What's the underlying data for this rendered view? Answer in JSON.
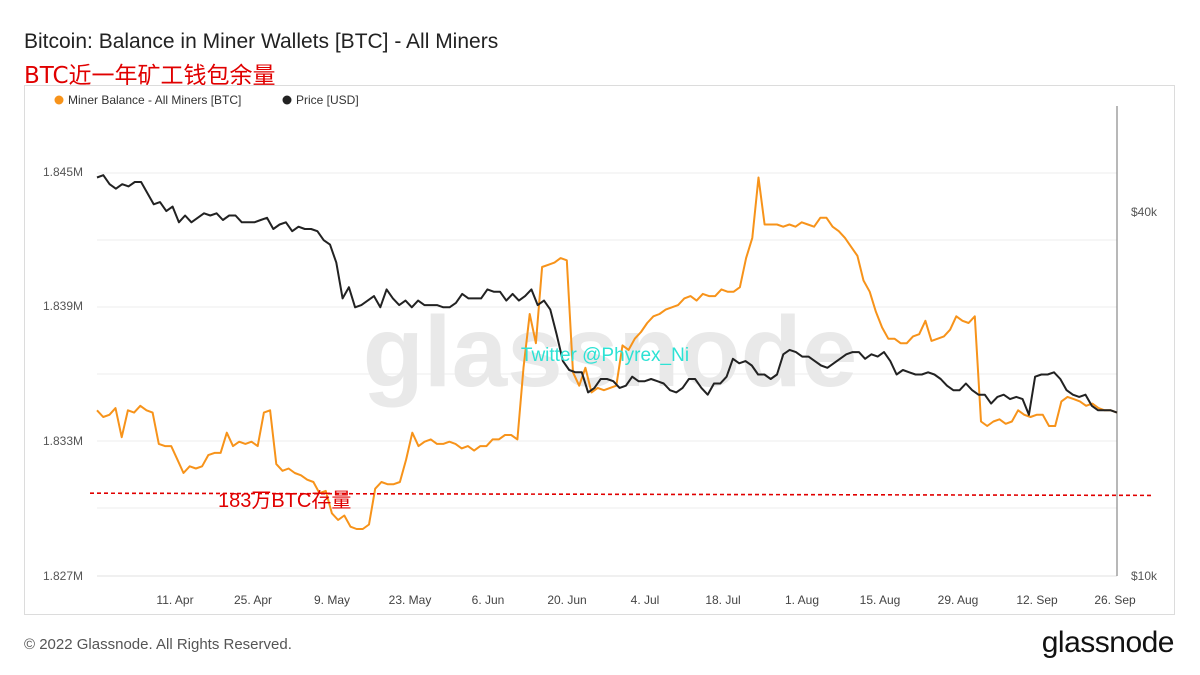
{
  "header": {
    "title": "Bitcoin: Balance in Miner Wallets [BTC] - All Miners",
    "subtitle": "BTC近一年矿工钱包余量"
  },
  "footer": {
    "copyright": "© 2022 Glassnode. All Rights Reserved.",
    "logo": "glassnode"
  },
  "colors": {
    "balance": "#f7931a",
    "price": "#222222",
    "reference": "#e00000",
    "watermark_handle": "#2de2d4"
  },
  "chart_data": {
    "type": "line",
    "legend_position": "top-left",
    "grid": true,
    "categories_labels": [
      "11. Apr",
      "25. Apr",
      "9. May",
      "23. May",
      "6. Jun",
      "20. Jun",
      "4. Jul",
      "18. Jul",
      "1. Aug",
      "15. Aug",
      "29. Aug",
      "12. Sep",
      "26. Sep"
    ],
    "y_left": {
      "ticks": [
        "1.827M",
        "1.833M",
        "1.839M",
        "1.845M"
      ],
      "min": 1.827,
      "max": 1.8478,
      "unit": "M BTC"
    },
    "y_right": {
      "ticks": [
        "$10k",
        "$40k"
      ],
      "scale": "log"
    },
    "series": [
      {
        "name": "Miner Balance - All Miners [BTC]",
        "axis": "left",
        "values": [
          1.8344,
          1.8341,
          1.8342,
          1.8345,
          1.8332,
          1.8344,
          1.8343,
          1.8346,
          1.8344,
          1.8343,
          1.8329,
          1.8328,
          1.8328,
          1.8322,
          1.8316,
          1.8319,
          1.8318,
          1.8319,
          1.8324,
          1.8325,
          1.8325,
          1.8334,
          1.8328,
          1.833,
          1.8329,
          1.833,
          1.8328,
          1.8343,
          1.8344,
          1.832,
          1.8317,
          1.8318,
          1.8316,
          1.8315,
          1.8313,
          1.8312,
          1.8307,
          1.8308,
          1.8298,
          1.8295,
          1.8297,
          1.8292,
          1.8291,
          1.8291,
          1.8293,
          1.8309,
          1.8312,
          1.8311,
          1.8311,
          1.8312,
          1.8322,
          1.8334,
          1.8328,
          1.833,
          1.8331,
          1.8329,
          1.8329,
          1.833,
          1.8329,
          1.8327,
          1.8328,
          1.8326,
          1.8328,
          1.8328,
          1.8331,
          1.8331,
          1.8333,
          1.8333,
          1.8331,
          1.8363,
          1.8387,
          1.8374,
          1.8408,
          1.8409,
          1.841,
          1.8412,
          1.8411,
          1.8361,
          1.8355,
          1.8363,
          1.8352,
          1.8354,
          1.8353,
          1.8354,
          1.8355,
          1.8373,
          1.8371,
          1.8376,
          1.8379,
          1.8383,
          1.8386,
          1.8387,
          1.8389,
          1.839,
          1.8391,
          1.8394,
          1.8395,
          1.8393,
          1.8396,
          1.8395,
          1.8395,
          1.8398,
          1.8397,
          1.8397,
          1.8399,
          1.8412,
          1.8421,
          1.8448,
          1.8427,
          1.8427,
          1.8427,
          1.8426,
          1.8427,
          1.8426,
          1.8428,
          1.8427,
          1.8426,
          1.843,
          1.843,
          1.8426,
          1.8424,
          1.8421,
          1.8417,
          1.8413,
          1.8402,
          1.8397,
          1.8388,
          1.8381,
          1.8376,
          1.8376,
          1.8374,
          1.8374,
          1.8377,
          1.8378,
          1.8384,
          1.8375,
          1.8376,
          1.8377,
          1.838,
          1.8386,
          1.8384,
          1.8383,
          1.8386,
          1.8339,
          1.8337,
          1.8339,
          1.834,
          1.8338,
          1.8339,
          1.8344,
          1.8342,
          1.8341,
          1.8342,
          1.8342,
          1.8337,
          1.8337,
          1.8348,
          1.835,
          1.8349,
          1.8348,
          1.8346,
          1.8347,
          1.8345,
          1.8344,
          1.8344,
          1.8343
        ]
      },
      {
        "name": "Price [USD]",
        "axis": "right",
        "values": [
          1.8448,
          1.8449,
          1.8445,
          1.8443,
          1.8445,
          1.8444,
          1.8446,
          1.8446,
          1.8441,
          1.8436,
          1.8437,
          1.8433,
          1.8435,
          1.8428,
          1.8431,
          1.8428,
          1.843,
          1.8432,
          1.8431,
          1.8432,
          1.8429,
          1.8431,
          1.8431,
          1.8428,
          1.8428,
          1.8428,
          1.8429,
          1.843,
          1.8425,
          1.8427,
          1.8428,
          1.8424,
          1.8426,
          1.8425,
          1.8425,
          1.8424,
          1.842,
          1.8418,
          1.841,
          1.8394,
          1.8399,
          1.839,
          1.8391,
          1.8393,
          1.8395,
          1.839,
          1.8398,
          1.8394,
          1.8391,
          1.8393,
          1.839,
          1.8393,
          1.8391,
          1.8391,
          1.8391,
          1.839,
          1.839,
          1.8392,
          1.8396,
          1.8394,
          1.8394,
          1.8394,
          1.8398,
          1.8397,
          1.8397,
          1.8393,
          1.8396,
          1.8393,
          1.8395,
          1.8398,
          1.8391,
          1.8393,
          1.8389,
          1.8378,
          1.8366,
          1.8362,
          1.8361,
          1.8361,
          1.8352,
          1.8354,
          1.8358,
          1.8358,
          1.8357,
          1.8354,
          1.8355,
          1.8359,
          1.8357,
          1.8357,
          1.8358,
          1.8357,
          1.8356,
          1.8353,
          1.8352,
          1.8354,
          1.8358,
          1.8358,
          1.8354,
          1.8351,
          1.8356,
          1.8356,
          1.8359,
          1.8367,
          1.8365,
          1.8366,
          1.8364,
          1.836,
          1.836,
          1.8358,
          1.836,
          1.8369,
          1.8371,
          1.837,
          1.8368,
          1.8368,
          1.8366,
          1.8364,
          1.8363,
          1.8365,
          1.8367,
          1.8369,
          1.837,
          1.837,
          1.8367,
          1.8369,
          1.8368,
          1.837,
          1.8366,
          1.836,
          1.8362,
          1.8361,
          1.836,
          1.836,
          1.8361,
          1.836,
          1.8358,
          1.8355,
          1.8353,
          1.8353,
          1.8356,
          1.8353,
          1.8351,
          1.8351,
          1.8347,
          1.835,
          1.8351,
          1.8349,
          1.835,
          1.8349,
          1.8342,
          1.8359,
          1.836,
          1.836,
          1.8361,
          1.8358,
          1.8353,
          1.8351,
          1.835,
          1.8351,
          1.8346,
          1.8344,
          1.8344,
          1.8344,
          1.8343
        ]
      }
    ],
    "annotations": {
      "reference_line": {
        "label": "183万BTC存量",
        "style": "dashed",
        "left_value": 1.8307,
        "right_value": 1.8306
      },
      "watermark": "glassnode",
      "watermark_handle": "Twitter @Phyrex_Ni"
    }
  }
}
